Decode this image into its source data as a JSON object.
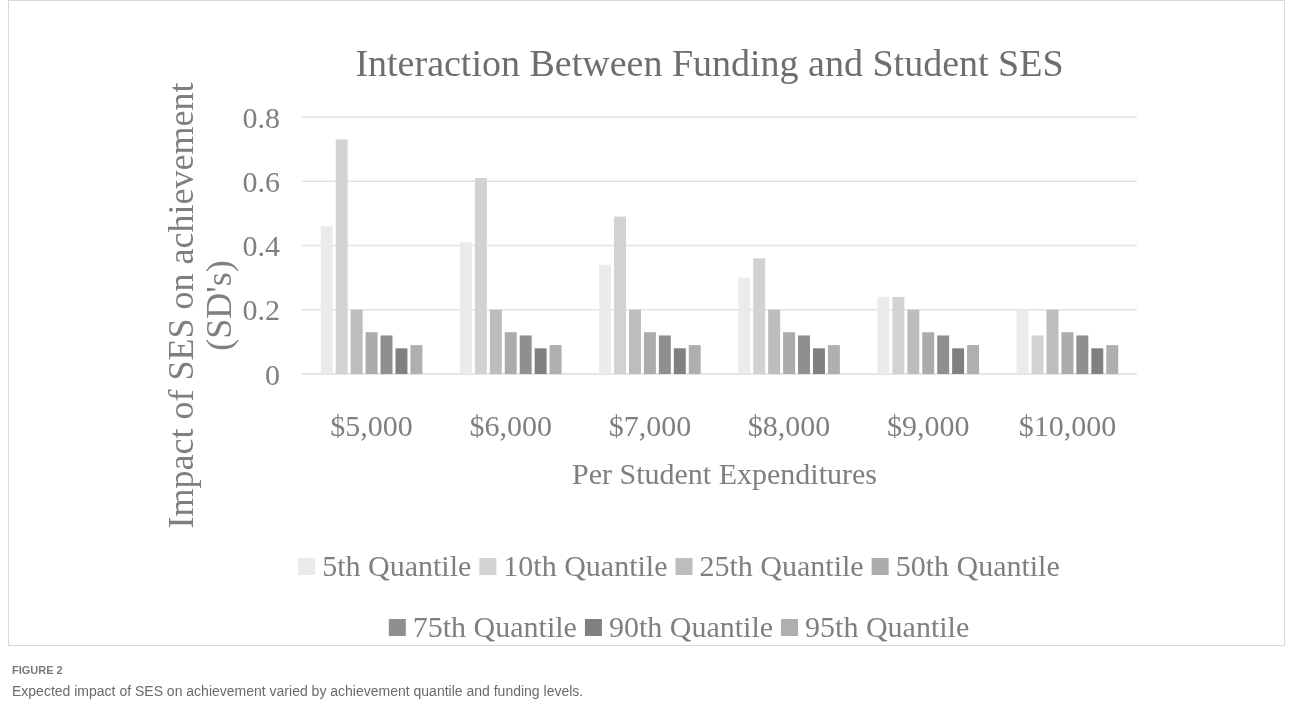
{
  "chart_data": {
    "type": "bar",
    "title": "Interaction Between Funding and Student SES",
    "xlabel": "Per Student Expenditures",
    "ylabel": "Impact of SES on achievement (SD's)",
    "categories": [
      "$5,000",
      "$6,000",
      "$7,000",
      "$8,000",
      "$9,000",
      "$10,000"
    ],
    "series": [
      {
        "name": "5th Quantile",
        "color": "#ebebeb",
        "values": [
          0.46,
          0.41,
          0.34,
          0.3,
          0.24,
          0.2
        ]
      },
      {
        "name": "10th Quantile",
        "color": "#d2d2d2",
        "values": [
          0.73,
          0.61,
          0.49,
          0.36,
          0.24,
          0.12
        ]
      },
      {
        "name": "25th Quantile",
        "color": "#bdbdbd",
        "values": [
          0.2,
          0.2,
          0.2,
          0.2,
          0.2,
          0.2
        ]
      },
      {
        "name": "50th Quantile",
        "color": "#ababab",
        "values": [
          0.13,
          0.13,
          0.13,
          0.13,
          0.13,
          0.13
        ]
      },
      {
        "name": "75th Quantile",
        "color": "#8f8f8f",
        "values": [
          0.12,
          0.12,
          0.12,
          0.12,
          0.12,
          0.12
        ]
      },
      {
        "name": "90th Quantile",
        "color": "#808080",
        "values": [
          0.08,
          0.08,
          0.08,
          0.08,
          0.08,
          0.08
        ]
      },
      {
        "name": "95th Quantile",
        "color": "#afafaf",
        "values": [
          0.09,
          0.09,
          0.09,
          0.09,
          0.09,
          0.09
        ]
      }
    ],
    "ylim": [
      0,
      0.8
    ],
    "yticks": [
      0,
      0.2,
      0.4,
      0.6,
      0.8
    ],
    "grid": "y",
    "legend": "bottom",
    "annotations": [
      "FIGURE 2",
      "Expected impact of SES on achievement varied by achievement quantile and funding levels."
    ]
  }
}
